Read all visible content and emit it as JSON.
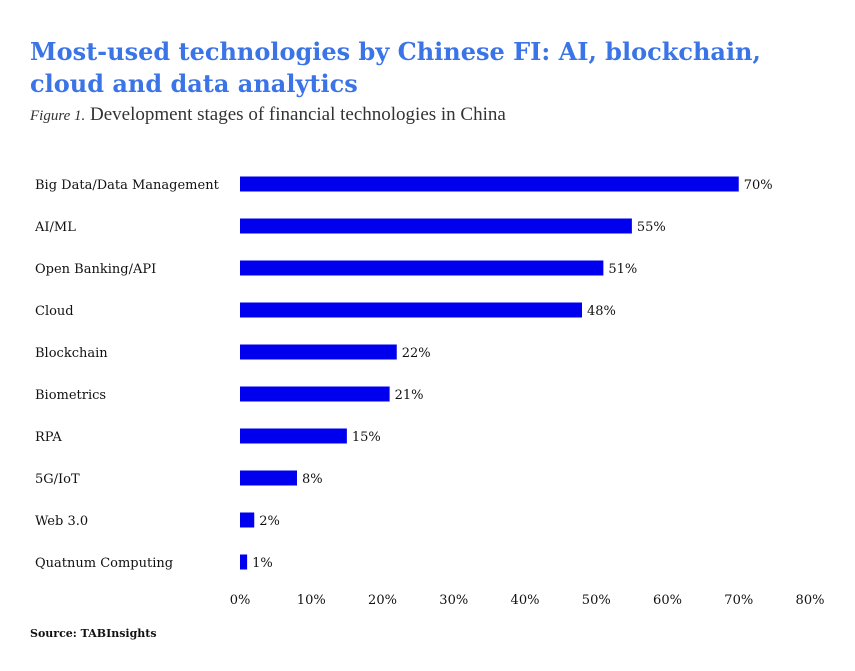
{
  "title": "Most-used technologies by Chinese FI: AI, blockchain, cloud and data analytics",
  "subtitle_figure": "Figure 1.",
  "subtitle_text": "Development stages of financial technologies in China",
  "source": "Source: TABInsights",
  "chart_data": {
    "type": "bar",
    "orientation": "horizontal",
    "categories": [
      "Big Data/Data Management",
      "AI/ML",
      "Open Banking/API",
      "Cloud",
      "Blockchain",
      "Biometrics",
      "RPA",
      "5G/IoT",
      "Web 3.0",
      "Quatnum Computing"
    ],
    "values": [
      70,
      55,
      51,
      48,
      22,
      21,
      15,
      8,
      2,
      1
    ],
    "value_labels": [
      "70%",
      "55%",
      "51%",
      "48%",
      "22%",
      "21%",
      "15%",
      "8%",
      "2%",
      "1%"
    ],
    "xlim": [
      0,
      80
    ],
    "x_ticks": [
      0,
      10,
      20,
      30,
      40,
      50,
      60,
      70,
      80
    ],
    "x_tick_labels": [
      "0%",
      "10%",
      "20%",
      "30%",
      "40%",
      "50%",
      "60%",
      "70%",
      "80%"
    ],
    "grid": false,
    "legend": "none",
    "bar_color": "#0000ee"
  }
}
